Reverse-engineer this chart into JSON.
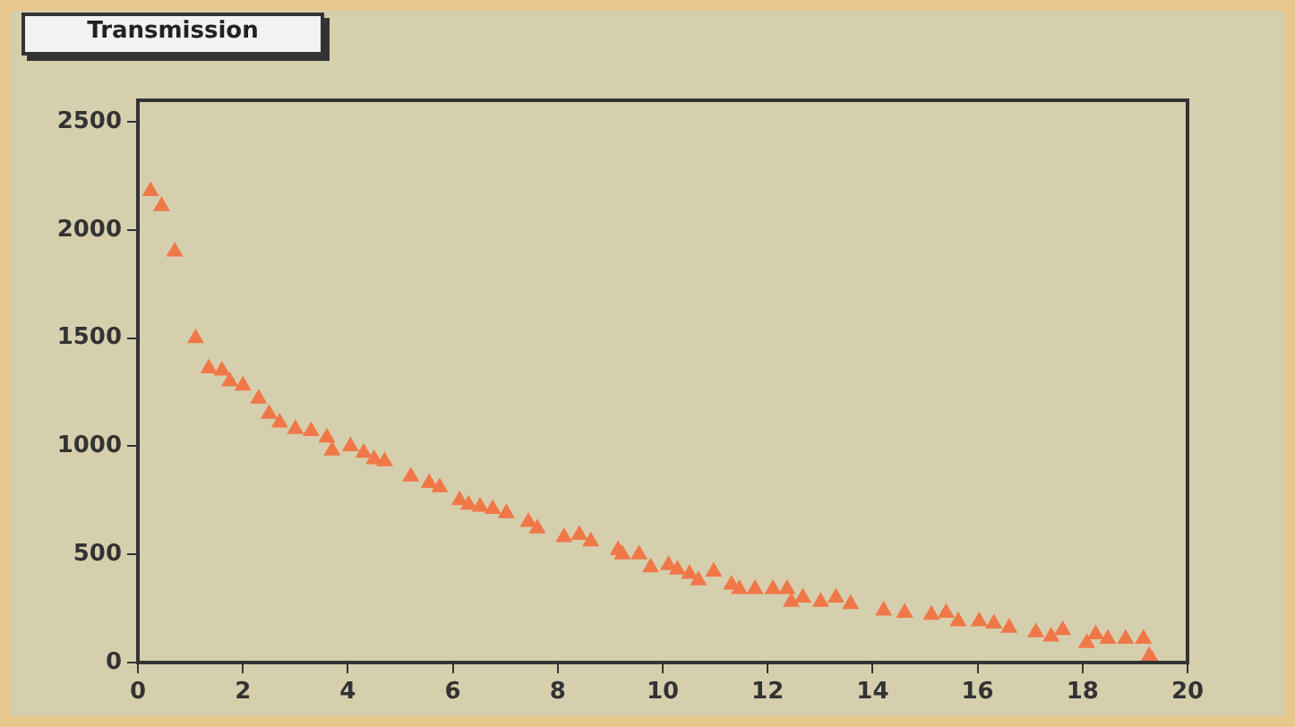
{
  "chart_data": {
    "type": "scatter",
    "title": "Transmission",
    "x": [
      0.24,
      0.45,
      0.7,
      1.1,
      1.35,
      1.6,
      1.75,
      2.0,
      2.3,
      2.5,
      2.7,
      3.0,
      3.3,
      3.6,
      3.7,
      4.05,
      4.3,
      4.5,
      4.7,
      5.2,
      5.55,
      5.75,
      6.13,
      6.3,
      6.52,
      6.76,
      7.02,
      7.44,
      7.61,
      8.12,
      8.41,
      8.63,
      9.15,
      9.23,
      9.55,
      9.77,
      10.11,
      10.28,
      10.51,
      10.68,
      10.97,
      11.31,
      11.46,
      11.76,
      12.1,
      12.37,
      12.45,
      12.67,
      13.01,
      13.3,
      13.58,
      14.21,
      14.61,
      15.12,
      15.4,
      15.63,
      16.03,
      16.31,
      16.6,
      17.11,
      17.4,
      17.62,
      18.08,
      18.25,
      18.48,
      18.82,
      19.16,
      19.27,
      19.33
    ],
    "series": [
      {
        "color": "#f07848",
        "values": [
          2180,
          2110,
          1900,
          1500,
          1360,
          1350,
          1300,
          1280,
          1220,
          1150,
          1110,
          1080,
          1070,
          1040,
          980,
          1000,
          970,
          940,
          930,
          860,
          830,
          810,
          750,
          730,
          720,
          710,
          690,
          650,
          620,
          580,
          590,
          560,
          520,
          500,
          500,
          440,
          450,
          430,
          410,
          380,
          420,
          360,
          340,
          340,
          340,
          340,
          280,
          300,
          280,
          300,
          270,
          240,
          230,
          220,
          230,
          190,
          190,
          180,
          160,
          140,
          120,
          150,
          90,
          130,
          110,
          110,
          110,
          30,
          10
        ]
      }
    ],
    "xlim": [
      0,
      20
    ],
    "xticks": [
      0,
      2,
      4,
      6,
      8,
      10,
      12,
      14,
      16,
      18,
      20
    ],
    "ylim": [
      0,
      2600
    ],
    "yticks": [
      0,
      500,
      1000,
      1500,
      2000,
      2500
    ],
    "grid": false,
    "legend": false,
    "marker": "triangle"
  }
}
